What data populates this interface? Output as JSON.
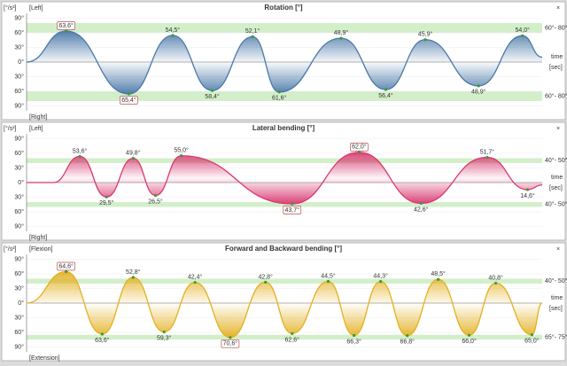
{
  "chart_data": [
    {
      "type": "area",
      "title": "Rotation [°]",
      "unit": "[°/s²]",
      "top_label": "[Left]",
      "bottom_label": "[Right]",
      "x_label": "time",
      "x_unit": "[sec]",
      "color": "#4a78a8",
      "xlim": [
        0,
        60
      ],
      "ylim": [
        -100,
        100
      ],
      "yticks": [
        {
          "value": -90,
          "label": "90°"
        },
        {
          "value": -60,
          "label": "60°"
        },
        {
          "value": -30,
          "label": "30°"
        },
        {
          "value": 0,
          "label": "0°"
        },
        {
          "value": 30,
          "label": "30°"
        },
        {
          "value": 60,
          "label": "60°"
        },
        {
          "value": 90,
          "label": "90°"
        }
      ],
      "bands": [
        {
          "range": [
            60,
            80
          ],
          "label": "60°- 80°"
        },
        {
          "range": [
            -80,
            -60
          ],
          "label": "60°- 80°"
        }
      ],
      "x": [
        0,
        4.6,
        11.9,
        17.0,
        21.6,
        26.3,
        29.4,
        36.6,
        41.8,
        46.4,
        52.6,
        57.7,
        60
      ],
      "values": [
        0,
        63.6,
        -65.4,
        54.5,
        -58.4,
        52.1,
        -61.6,
        48.9,
        -56.4,
        45.9,
        -48.9,
        54.0,
        10
      ],
      "value_labels": [
        null,
        "63,6°",
        "65,4°",
        "54,5°",
        "58,4°",
        "52,1°",
        "61,6°",
        "48,9°",
        "56,4°",
        "45,9°",
        "48,9°",
        "54,0°",
        null
      ]
    },
    {
      "type": "area",
      "title": "Lateral bending [°]",
      "unit": "[°/s²]",
      "top_label": "[Left]",
      "bottom_label": "[Right]",
      "x_label": "time",
      "x_unit": "[sec]",
      "color": "#d8386f",
      "xlim": [
        0,
        60
      ],
      "ylim": [
        -100,
        100
      ],
      "yticks": [
        {
          "value": -90,
          "label": "90°"
        },
        {
          "value": -60,
          "label": "60°"
        },
        {
          "value": -30,
          "label": "30°"
        },
        {
          "value": 0,
          "label": "0°"
        },
        {
          "value": 30,
          "label": "30°"
        },
        {
          "value": 60,
          "label": "60°"
        },
        {
          "value": 90,
          "label": "90°"
        }
      ],
      "bands": [
        {
          "range": [
            40,
            50
          ],
          "label": "40°- 50°"
        },
        {
          "range": [
            -50,
            -40
          ],
          "label": "40°- 50°"
        }
      ],
      "x": [
        0,
        3.1,
        6.2,
        9.3,
        12.4,
        15.0,
        18.0,
        30.9,
        38.7,
        45.9,
        53.6,
        58.3,
        60
      ],
      "values": [
        0,
        0,
        53.6,
        -29.5,
        49.8,
        -26.5,
        55.0,
        -43.7,
        62.0,
        -42.6,
        51.7,
        -14.6,
        -5
      ],
      "value_labels": [
        null,
        null,
        "53,6°",
        "29,5°",
        "49,8°",
        "26,5°",
        "55,0°",
        "43,7°",
        "62,0°",
        "42,6°",
        "51,7°",
        "14,6°",
        null
      ]
    },
    {
      "type": "area",
      "title": "Forward and Backward bending [°]",
      "unit": "[°/s²]",
      "top_label": "[Flexion]",
      "bottom_label": "[Extension]",
      "x_label": "time",
      "x_unit": "[sec]",
      "color": "#e3b020",
      "xlim": [
        0,
        60
      ],
      "ylim": [
        -100,
        100
      ],
      "yticks": [
        {
          "value": -90,
          "label": "90°"
        },
        {
          "value": -60,
          "label": "60°"
        },
        {
          "value": -30,
          "label": "30°"
        },
        {
          "value": 0,
          "label": "0°"
        },
        {
          "value": 30,
          "label": "30°"
        },
        {
          "value": 60,
          "label": "60°"
        },
        {
          "value": 90,
          "label": "90°"
        }
      ],
      "bands": [
        {
          "range": [
            40,
            50
          ],
          "label": "40°- 50°"
        },
        {
          "range": [
            -75,
            -65
          ],
          "label": "65°- 75°"
        }
      ],
      "x": [
        0,
        4.6,
        8.8,
        12.4,
        16.0,
        19.6,
        23.7,
        27.8,
        30.9,
        35.1,
        38.1,
        41.2,
        44.3,
        47.9,
        51.5,
        54.6,
        58.8,
        60
      ],
      "values": [
        0,
        64.6,
        -63.6,
        52.8,
        -59.3,
        42.4,
        -70.6,
        42.8,
        -62.6,
        44.5,
        -66.3,
        44.3,
        -66.8,
        48.5,
        -66.0,
        40.8,
        -65.0,
        0
      ],
      "value_labels": [
        null,
        "64,6°",
        "63,6°",
        "52,8°",
        "59,3°",
        "42,4°",
        "70,6°",
        "42,8°",
        "62,6°",
        "44,5°",
        "66,3°",
        "44,3°",
        "66,8°",
        "48,5°",
        "66,0°",
        "40,8°",
        "65,0°",
        null
      ]
    }
  ]
}
